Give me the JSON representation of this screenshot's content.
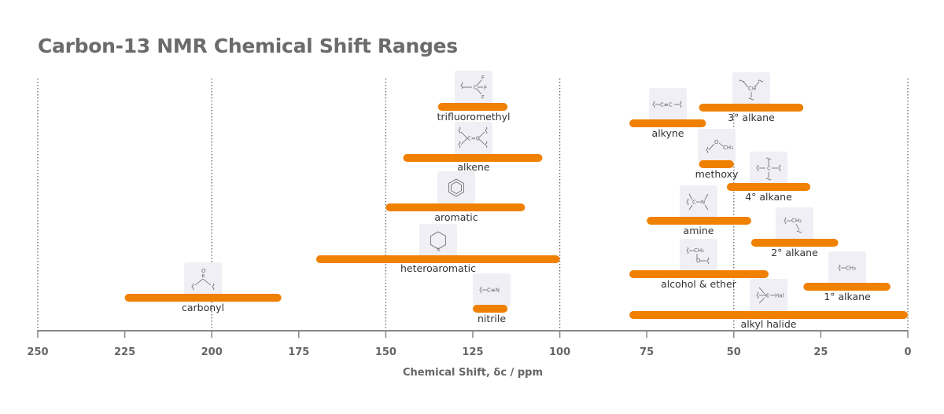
{
  "chart_data": {
    "type": "bar",
    "orientation": "horizontal-range",
    "title": "Carbon-13 NMR Chemical Shift Ranges",
    "xlabel": "Chemical Shift, δc / ppm",
    "xlim": [
      250,
      0
    ],
    "x_reversed": true,
    "xticks": [
      250,
      225,
      200,
      175,
      150,
      125,
      100,
      75,
      50,
      25,
      0
    ],
    "gridlines_at": [
      250,
      200,
      150,
      100,
      50,
      0
    ],
    "grid": "dotted vertical",
    "bar_color": "#f08000",
    "series": [
      {
        "label": "trifluoromethyl",
        "range": [
          135,
          115
        ],
        "icon": "trifluoromethyl-structure-icon"
      },
      {
        "label": "alkene",
        "range": [
          145,
          105
        ],
        "icon": "alkene-structure-icon"
      },
      {
        "label": "aromatic",
        "range": [
          150,
          110
        ],
        "icon": "benzene-ring-icon"
      },
      {
        "label": "heteroaromatic",
        "range": [
          170,
          100
        ],
        "icon": "heteroaromatic-ring-icon"
      },
      {
        "label": "carbonyl",
        "range": [
          225,
          180
        ],
        "icon": "carbonyl-structure-icon"
      },
      {
        "label": "nitrile",
        "range": [
          125,
          115
        ],
        "icon": "nitrile-structure-icon"
      },
      {
        "label": "alkyne",
        "range": [
          80,
          58
        ],
        "icon": "alkyne-structure-icon"
      },
      {
        "label": "3° alkane",
        "range": [
          60,
          30
        ],
        "icon": "tertiary-alkane-structure-icon"
      },
      {
        "label": "methoxy",
        "range": [
          60,
          50
        ],
        "icon": "methoxy-structure-icon"
      },
      {
        "label": "4° alkane",
        "range": [
          52,
          28
        ],
        "icon": "quaternary-alkane-structure-icon"
      },
      {
        "label": "amine",
        "range": [
          75,
          45
        ],
        "icon": "amine-structure-icon"
      },
      {
        "label": "2° alkane",
        "range": [
          45,
          20
        ],
        "icon": "secondary-alkane-structure-icon"
      },
      {
        "label": "alcohol & ether",
        "range": [
          80,
          40
        ],
        "icon": "alcohol-ether-structure-icon"
      },
      {
        "label": "1° alkane",
        "range": [
          30,
          5
        ],
        "icon": "primary-alkane-structure-icon"
      },
      {
        "label": "alkyl halide",
        "range": [
          80,
          0
        ],
        "icon": "alkyl-halide-structure-icon"
      }
    ]
  }
}
